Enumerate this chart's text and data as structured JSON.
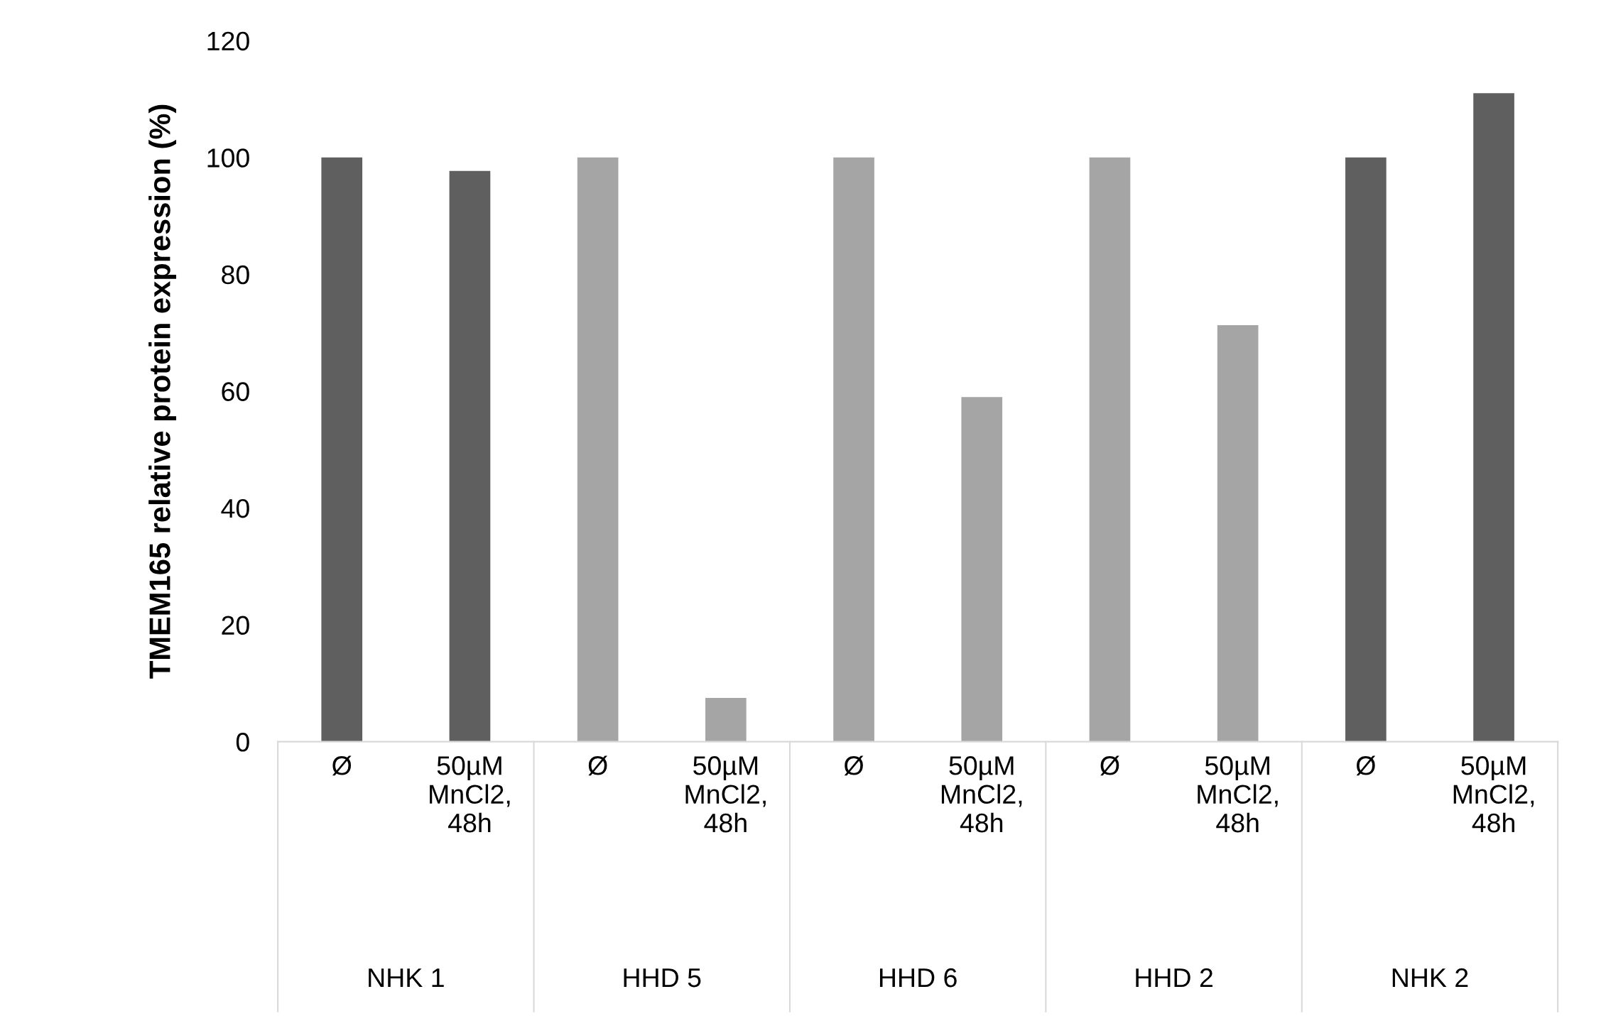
{
  "chart_data": {
    "type": "bar",
    "ylabel": "TMEM165 relative protein expression (%)",
    "categories": [
      "Ø",
      "50µM MnCl2, 48h",
      "Ø",
      "50µM MnCl2, 48h",
      "Ø",
      "50µM MnCl2, 48h",
      "Ø",
      "50µM MnCl2, 48h",
      "Ø",
      "50µM MnCl2, 48h"
    ],
    "values": [
      100,
      97.7,
      100,
      7.5,
      100,
      59,
      100,
      71.3,
      100,
      111
    ],
    "colors": [
      "#5f5f5f",
      "#5f5f5f",
      "#a5a5a5",
      "#a5a5a5",
      "#a5a5a5",
      "#a5a5a5",
      "#a5a5a5",
      "#a5a5a5",
      "#5f5f5f",
      "#5f5f5f"
    ],
    "annotations": [
      "NHK 1",
      "HHD 5",
      "HHD 6",
      "HHD 2",
      "NHK 2"
    ],
    "ylim": [
      0,
      120
    ],
    "yticks": [
      0,
      20,
      40,
      60,
      80,
      100,
      120
    ],
    "grid": false,
    "legend": false
  }
}
